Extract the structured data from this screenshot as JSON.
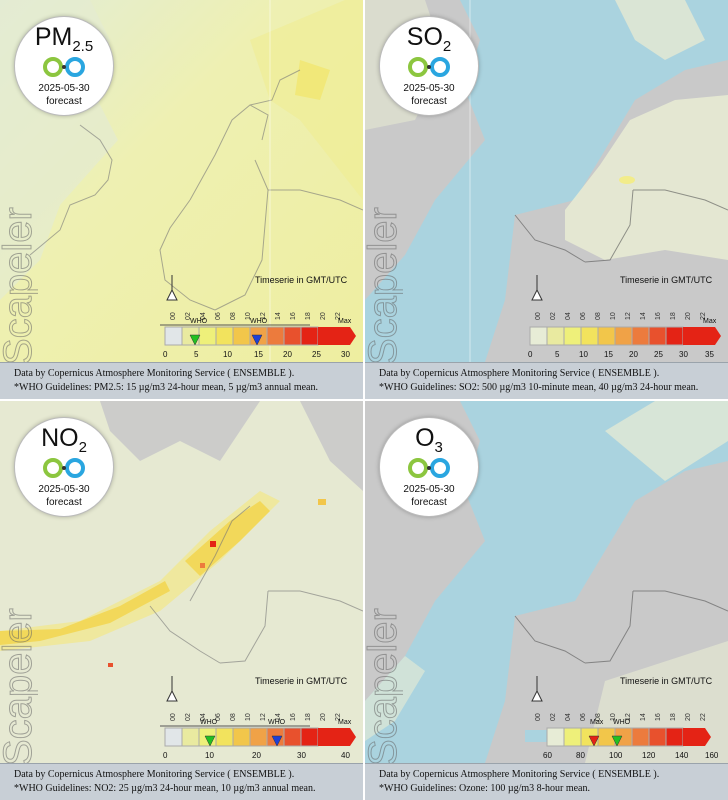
{
  "panels": [
    {
      "pollutant": "PM",
      "subscript": "2.5",
      "date": "2025-05-30",
      "forecast": "forecast",
      "watermark": "Scapeler",
      "timeserie": "Timeserie in GMT/UTC",
      "hours": [
        "00",
        "02",
        "04",
        "06",
        "08",
        "10",
        "12",
        "14",
        "16",
        "18",
        "20",
        "22"
      ],
      "scale_ticks": [
        "0",
        "5",
        "10",
        "15",
        "20",
        "25",
        "30"
      ],
      "scale_labels": [
        "WHO",
        "WHO",
        "Max"
      ],
      "scale_colors": [
        "#e7ecd6",
        "#e9eaa0",
        "#eef07a",
        "#f2e35d",
        "#f2c64a",
        "#f0a247",
        "#ec7b3d",
        "#e8512d",
        "#e42315"
      ],
      "caption_line1": "Data by Copernicus Atmosphere Monitoring Service ( ENSEMBLE ).",
      "caption_line2": "*WHO Guidelines: PM2.5: 15 µg/m3 24-hour mean, 5 µg/m3 annual mean."
    },
    {
      "pollutant": "SO",
      "subscript": "2",
      "date": "2025-05-30",
      "forecast": "forecast",
      "watermark": "Scapeler",
      "timeserie": "Timeserie in GMT/UTC",
      "hours": [
        "00",
        "02",
        "04",
        "06",
        "08",
        "10",
        "12",
        "14",
        "16",
        "18",
        "20",
        "22"
      ],
      "scale_ticks": [
        "0",
        "5",
        "10",
        "15",
        "20",
        "25",
        "30",
        "35"
      ],
      "scale_labels": [
        "Max"
      ],
      "scale_colors": [
        "#e7ecd6",
        "#e9eaa0",
        "#eef07a",
        "#f2e35d",
        "#f2c64a",
        "#f0a247",
        "#ec7b3d",
        "#e8512d",
        "#e42315"
      ],
      "caption_line1": "Data by Copernicus Atmosphere Monitoring Service ( ENSEMBLE ).",
      "caption_line2": "*WHO Guidelines: SO2: 500 µg/m3 10-minute mean, 40 µg/m3 24-hour mean."
    },
    {
      "pollutant": "NO",
      "subscript": "2",
      "date": "2025-05-30",
      "forecast": "forecast",
      "watermark": "Scapeler",
      "timeserie": "Timeserie in GMT/UTC",
      "hours": [
        "00",
        "02",
        "04",
        "06",
        "08",
        "10",
        "12",
        "14",
        "16",
        "18",
        "20",
        "22"
      ],
      "scale_ticks": [
        "0",
        "10",
        "20",
        "30",
        "40"
      ],
      "scale_labels": [
        "WHO",
        "WHO",
        "Max"
      ],
      "scale_colors": [
        "#e7ecd6",
        "#e9eaa0",
        "#eef07a",
        "#f2e35d",
        "#f2c64a",
        "#f0a247",
        "#ec7b3d",
        "#e8512d",
        "#e42315"
      ],
      "caption_line1": "Data by Copernicus Atmosphere Monitoring Service ( ENSEMBLE ).",
      "caption_line2": "*WHO Guidelines: NO2: 25 µg/m3 24-hour mean, 10 µg/m3 annual mean."
    },
    {
      "pollutant": "O",
      "subscript": "3",
      "date": "2025-05-30",
      "forecast": "forecast",
      "watermark": "Scapeler",
      "timeserie": "Timeserie in GMT/UTC",
      "hours": [
        "00",
        "02",
        "04",
        "06",
        "08",
        "10",
        "12",
        "14",
        "16",
        "18",
        "20",
        "22"
      ],
      "scale_ticks": [
        "60",
        "80",
        "100",
        "120",
        "140",
        "160"
      ],
      "scale_labels": [
        "Max",
        "WHO"
      ],
      "scale_colors": [
        "#e7ecd6",
        "#e9eaa0",
        "#eef07a",
        "#f2e35d",
        "#f2c64a",
        "#f0a247",
        "#ec7b3d",
        "#e8512d",
        "#e42315"
      ],
      "caption_line1": "Data by Copernicus Atmosphere Monitoring Service ( ENSEMBLE ).",
      "caption_line2": "*WHO Guidelines: Ozone: 100 µg/m3 8-hour mean."
    }
  ]
}
